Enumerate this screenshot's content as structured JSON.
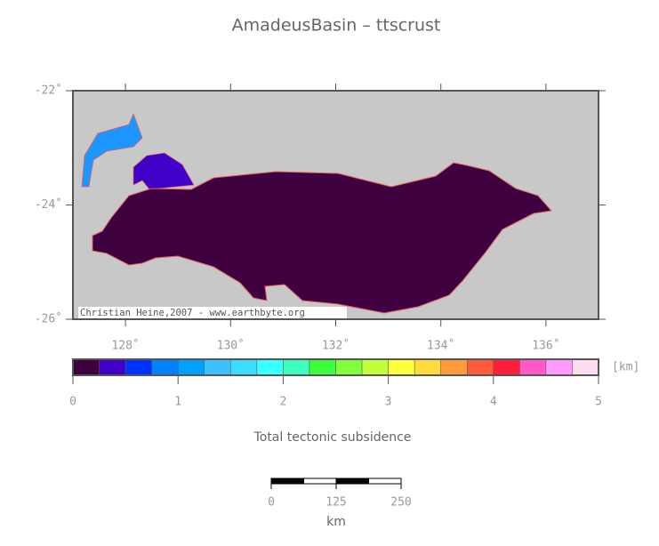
{
  "title": "AmadeusBasin – ttscrust",
  "map": {
    "lon_range": [
      127,
      137
    ],
    "lat_range": [
      -22,
      -26
    ],
    "lon_ticks": [
      {
        "value": 128,
        "label": "128˚"
      },
      {
        "value": 130,
        "label": "130˚"
      },
      {
        "value": 132,
        "label": "132˚"
      },
      {
        "value": 134,
        "label": "134˚"
      },
      {
        "value": 136,
        "label": "136˚"
      }
    ],
    "lat_ticks": [
      {
        "value": -22,
        "label": "-22˚"
      },
      {
        "value": -24,
        "label": "-24˚"
      },
      {
        "value": -26,
        "label": "-26˚"
      }
    ],
    "credit": "Christian Heine,2007 - www.earthbyte.org"
  },
  "colorbar": {
    "colors": [
      "#3f003f",
      "#3f00c8",
      "#0032ff",
      "#0082ff",
      "#00a0ff",
      "#3cc0ff",
      "#3cdcff",
      "#3cffff",
      "#3cffbe",
      "#3cff3c",
      "#82ff3c",
      "#c0ff3c",
      "#ffff3c",
      "#ffdc3c",
      "#ff9b3c",
      "#ff5a3c",
      "#ff1e3c",
      "#ff5ac8",
      "#ff9bff",
      "#ffdcf0"
    ],
    "limits": [
      0,
      5
    ],
    "ticks": [
      0,
      1,
      2,
      3,
      4,
      5
    ],
    "unit": "[km]",
    "label": "Total tectonic subsidence"
  },
  "scale_bar": {
    "ticks": [
      0,
      125,
      250
    ],
    "unit": "km"
  }
}
